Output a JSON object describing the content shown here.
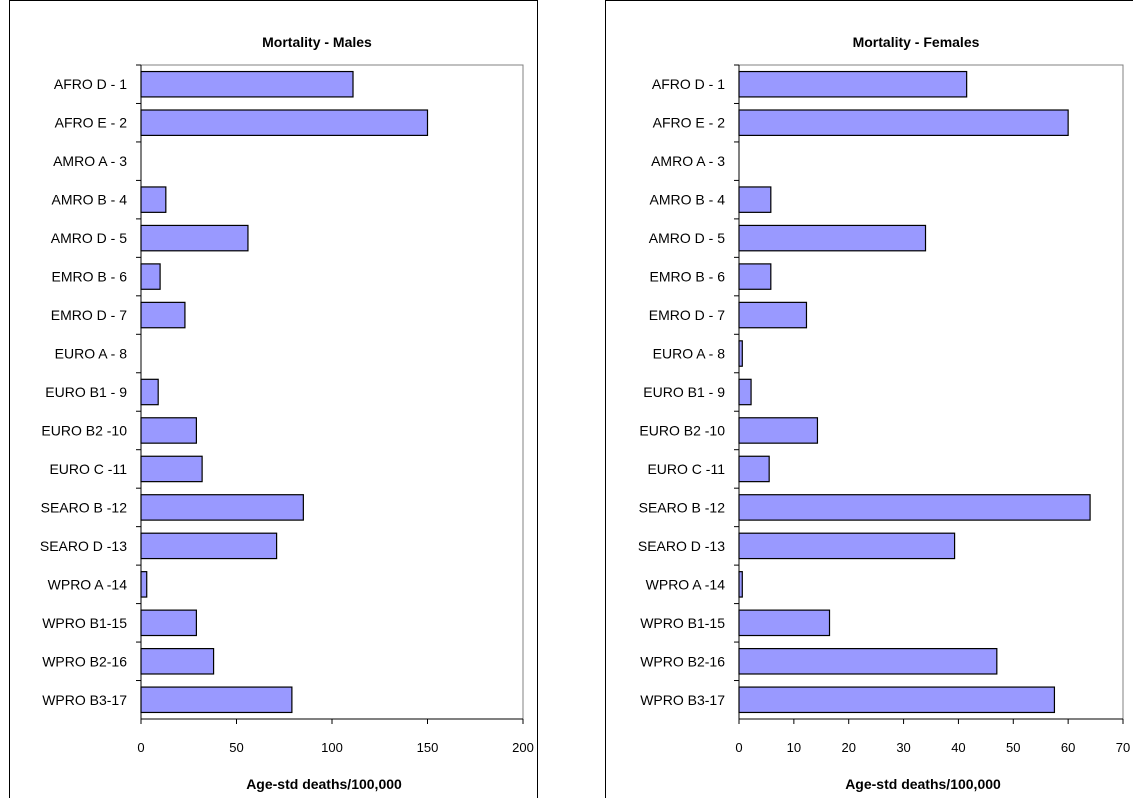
{
  "chart_data": [
    {
      "type": "bar",
      "orientation": "horizontal",
      "title": "Mortality - Males",
      "xlabel": "Age-std deaths/100,000",
      "ylabel": "",
      "categories": [
        "AFRO D  -  1",
        "AFRO E  -  2",
        "AMRO A  -  3",
        "AMRO B  -  4",
        "AMRO D  -  5",
        "EMRO B  -  6",
        "EMRO D  -  7",
        "EURO A   -  8",
        "EURO B1 -  9",
        "EURO B2 -10",
        "EURO C -11",
        "SEARO B -12",
        "SEARO D -13",
        "WPRO A  -14",
        "WPRO B1-15",
        "WPRO B2-16",
        "WPRO B3-17"
      ],
      "values": [
        111,
        150,
        0,
        13,
        56,
        10,
        23,
        0,
        9,
        29,
        32,
        85,
        71,
        3,
        29,
        38,
        79
      ],
      "xlim": [
        0,
        200
      ],
      "xticks": [
        "0",
        "50",
        "100",
        "150",
        "200"
      ],
      "grid": false,
      "bar_color": "#9999FF"
    },
    {
      "type": "bar",
      "orientation": "horizontal",
      "title": "Mortality - Females",
      "xlabel": "Age-std deaths/100,000",
      "ylabel": "",
      "categories": [
        "AFRO D  -  1",
        "AFRO E  -  2",
        "AMRO A  -  3",
        "AMRO B  -  4",
        "AMRO D  -  5",
        "EMRO B  -  6",
        "EMRO D  -  7",
        "EURO A   -  8",
        "EURO B1 -  9",
        "EURO B2 -10",
        "EURO C -11",
        "SEARO B -12",
        "SEARO D -13",
        "WPRO A  -14",
        "WPRO B1-15",
        "WPRO B2-16",
        "WPRO B3-17"
      ],
      "values": [
        41.5,
        60,
        0,
        5.8,
        34,
        5.8,
        12.3,
        0.6,
        2.2,
        14.3,
        5.5,
        64,
        39.3,
        0.6,
        16.5,
        47,
        57.5
      ],
      "xlim": [
        0,
        70
      ],
      "xticks": [
        "0",
        "10",
        "20",
        "30",
        "40",
        "50",
        "60",
        "70"
      ],
      "grid": false,
      "bar_color": "#9999FF"
    }
  ]
}
